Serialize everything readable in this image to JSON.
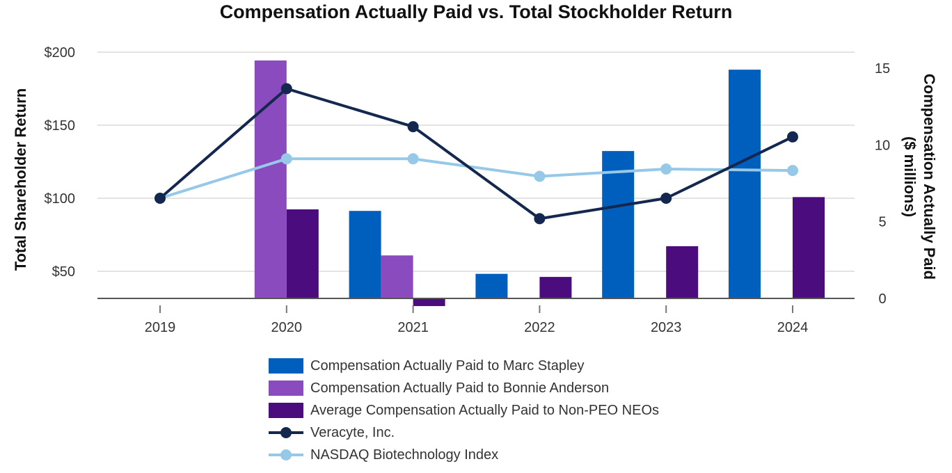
{
  "chart_data": {
    "type": "bar+line",
    "title": "Compensation Actually Paid vs. Total Stockholder Return",
    "categories": [
      "2019",
      "2020",
      "2021",
      "2022",
      "2023",
      "2024"
    ],
    "left_axis": {
      "label": "Total Shareholder Return",
      "range": [
        31,
        200
      ],
      "ticks": [
        50,
        100,
        150,
        200
      ],
      "tick_labels": [
        "$50",
        "$100",
        "$150",
        "$200"
      ]
    },
    "right_axis": {
      "label_line1": "Compensation Actually Paid",
      "label_line2": "($ millions)",
      "range": [
        0,
        16
      ],
      "ticks": [
        0,
        5,
        10,
        15
      ],
      "tick_labels": [
        "0",
        "5",
        "10",
        "15"
      ]
    },
    "bar_series": [
      {
        "name": "Compensation Actually Paid to Marc Stapley",
        "color": "#005EBD",
        "values": [
          null,
          null,
          5.7,
          1.6,
          9.6,
          14.9
        ]
      },
      {
        "name": "Compensation Actually Paid to Bonnie Anderson",
        "color": "#8A4BBF",
        "values": [
          null,
          15.5,
          2.8,
          null,
          null,
          null
        ]
      },
      {
        "name": "Average Compensation Actually Paid to Non-PEO NEOs",
        "color": "#4B0C7E",
        "values": [
          null,
          5.8,
          -0.5,
          1.4,
          3.4,
          6.6
        ]
      }
    ],
    "line_series": [
      {
        "name": "Veracyte, Inc.",
        "color": "#14284F",
        "values": [
          100,
          175,
          149,
          86,
          100,
          142
        ]
      },
      {
        "name": "NASDAQ Biotechnology Index",
        "color": "#96C8E8",
        "values": [
          100,
          127,
          127,
          115,
          120,
          119
        ]
      }
    ],
    "grid": true,
    "legend_position": "bottom"
  }
}
